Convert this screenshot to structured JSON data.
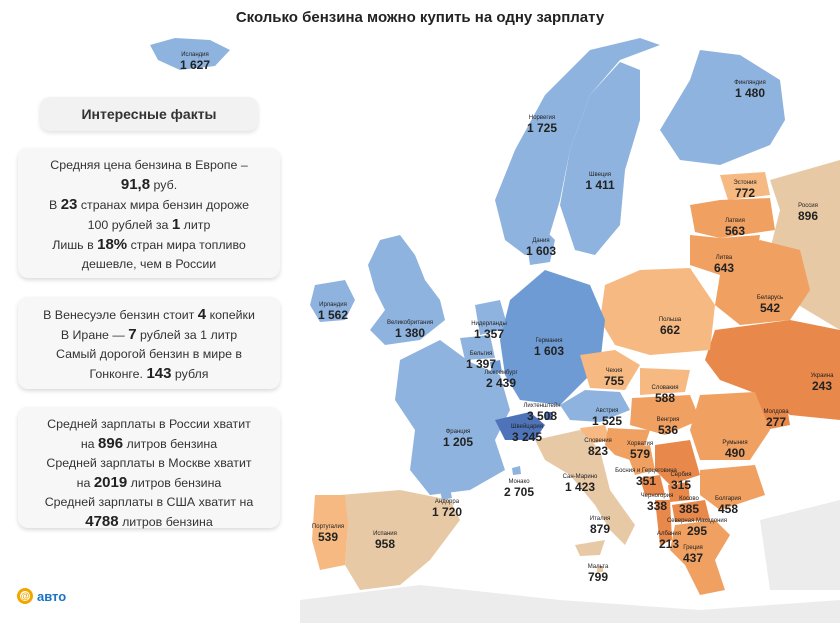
{
  "title": "Сколько бензина можно купить на одну зарплату",
  "facts_title": "Интересные факты",
  "facts1": {
    "l1": "Средняя цена бензина в Европе –",
    "l2_b": "91,8",
    "l2": " руб.",
    "l3_a": "В ",
    "l3_b": "23",
    "l3_c": " странах мира бензин дороже",
    "l4_a": "100 рублей за ",
    "l4_b": "1",
    "l4_c": " литр",
    "l5_a": "Лишь в ",
    "l5_b": "18%",
    "l5_c": " стран мира топливо",
    "l6": "дешевле, чем в России"
  },
  "facts2": {
    "l1_a": "В Венесуэле бензин стоит ",
    "l1_b": "4",
    "l1_c": " копейки",
    "l2_a": "В Иране — ",
    "l2_b": "7",
    "l2_c": " рублей за 1 литр",
    "l3": "Самый дорогой бензин в мире в",
    "l4_a": "Гонконге. ",
    "l4_b": "143",
    "l4_c": " рубля"
  },
  "facts3": {
    "l1": "Средней зарплаты в России хватит",
    "l2_a": "на ",
    "l2_b": "896",
    "l2_c": " литров бензина",
    "l3": "Средней зарплаты в Москве хватит",
    "l4_a": "на ",
    "l4_b": "2019",
    "l4_c": " литров бензина",
    "l5": "Средней зарплаты в США хватит на",
    "l6_b": "4788",
    "l6_c": " литров бензина"
  },
  "logo": {
    "symbol": "@",
    "text": "авто"
  },
  "colors": {
    "sea": "#ffffff",
    "land_other": "#ececec",
    "blue_light": "#8fb3df",
    "blue_mid": "#6f9bd4",
    "blue_dark": "#4f73b8",
    "orange_light": "#f6b982",
    "orange_mid": "#f0a060",
    "orange_dark": "#e8884a",
    "beige": "#e8c9a5"
  },
  "countries": [
    {
      "id": "iceland",
      "name": "Исландия",
      "value": "1 627"
    },
    {
      "id": "norway",
      "name": "Норвегия",
      "value": "1 725"
    },
    {
      "id": "sweden",
      "name": "Швеция",
      "value": "1 411"
    },
    {
      "id": "finland",
      "name": "Финляндия",
      "value": "1 480"
    },
    {
      "id": "estonia",
      "name": "Эстония",
      "value": "772"
    },
    {
      "id": "russia",
      "name": "Россия",
      "value": "896"
    },
    {
      "id": "latvia",
      "name": "Латвия",
      "value": "563"
    },
    {
      "id": "lithuania",
      "name": "Литва",
      "value": "643"
    },
    {
      "id": "denmark",
      "name": "Дания",
      "value": "1 603"
    },
    {
      "id": "ireland",
      "name": "Ирландия",
      "value": "1 562"
    },
    {
      "id": "uk",
      "name": "Великобритания",
      "value": "1 380"
    },
    {
      "id": "netherlands",
      "name": "Нидерланды",
      "value": "1 357"
    },
    {
      "id": "germany",
      "name": "Германия",
      "value": "1 603"
    },
    {
      "id": "poland",
      "name": "Польша",
      "value": "662"
    },
    {
      "id": "belarus",
      "name": "Беларусь",
      "value": "542"
    },
    {
      "id": "belgium",
      "name": "Бельгия",
      "value": "1 397"
    },
    {
      "id": "luxembourg",
      "name": "Люксембург",
      "value": "2 439"
    },
    {
      "id": "czechia",
      "name": "Чехия",
      "value": "755"
    },
    {
      "id": "slovakia",
      "name": "Словакия",
      "value": "588"
    },
    {
      "id": "ukraine",
      "name": "Украина",
      "value": "243"
    },
    {
      "id": "liechtenstein",
      "name": "Лихтенштейн",
      "value": "3 508"
    },
    {
      "id": "austria",
      "name": "Австрия",
      "value": "1 525"
    },
    {
      "id": "switzerland",
      "name": "Швейцария",
      "value": "3 245"
    },
    {
      "id": "hungary",
      "name": "Венгрия",
      "value": "536"
    },
    {
      "id": "moldova",
      "name": "Молдова",
      "value": "277"
    },
    {
      "id": "france",
      "name": "Франция",
      "value": "1 205"
    },
    {
      "id": "slovenia",
      "name": "Словения",
      "value": "823"
    },
    {
      "id": "croatia",
      "name": "Хорватия",
      "value": "579"
    },
    {
      "id": "romania",
      "name": "Румыния",
      "value": "490"
    },
    {
      "id": "sanmarino",
      "name": "Сан-Марино",
      "value": "1 423"
    },
    {
      "id": "bosnia",
      "name": "Босния и Герцеговина",
      "value": "351"
    },
    {
      "id": "serbia",
      "name": "Сербия",
      "value": "315"
    },
    {
      "id": "monaco",
      "name": "Монако",
      "value": "2 705"
    },
    {
      "id": "montenegro",
      "name": "Черногория",
      "value": "338"
    },
    {
      "id": "kosovo",
      "name": "Косово",
      "value": "385"
    },
    {
      "id": "bulgaria",
      "name": "Болгария",
      "value": "458"
    },
    {
      "id": "andorra",
      "name": "Андорра",
      "value": "1 720"
    },
    {
      "id": "northmacedonia",
      "name": "Северная Македония",
      "value": "295"
    },
    {
      "id": "albania",
      "name": "Албания",
      "value": "213"
    },
    {
      "id": "portugal",
      "name": "Португалия",
      "value": "539"
    },
    {
      "id": "spain",
      "name": "Испания",
      "value": "958"
    },
    {
      "id": "italy",
      "name": "Италия",
      "value": "879"
    },
    {
      "id": "greece",
      "name": "Греция",
      "value": "437"
    },
    {
      "id": "malta",
      "name": "Мальта",
      "value": "799"
    }
  ]
}
